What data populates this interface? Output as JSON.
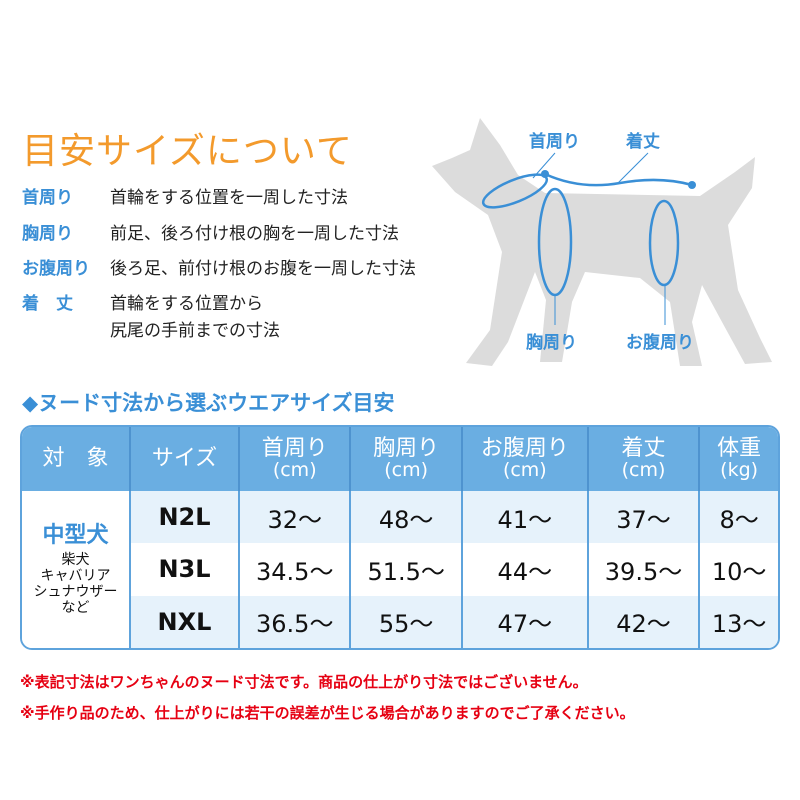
{
  "title": "目安サイズについて",
  "definitions": [
    {
      "term": "首周り",
      "desc": [
        "首輪をする位置を一周した寸法"
      ]
    },
    {
      "term": "胸周り",
      "desc": [
        "前足、後ろ付け根の胸を一周した寸法"
      ]
    },
    {
      "term": "お腹周り",
      "desc": [
        "後ろ足、前付け根のお腹を一周した寸法"
      ]
    },
    {
      "term": "着　丈",
      "desc": [
        "首輪をする位置から",
        "尻尾の手前までの寸法"
      ]
    }
  ],
  "diagram": {
    "labels": {
      "neck": "首周り",
      "length": "着丈",
      "chest": "胸周り",
      "belly": "お腹周り"
    }
  },
  "subtitle": "◆ヌード寸法から選ぶウエアサイズ目安",
  "table": {
    "headers": [
      {
        "label": "対　象"
      },
      {
        "label": "サイズ"
      },
      {
        "label": "首周り",
        "unit": "(cm)"
      },
      {
        "label": "胸周り",
        "unit": "(cm)"
      },
      {
        "label": "お腹周り",
        "unit": "(cm)"
      },
      {
        "label": "着丈",
        "unit": "(cm)"
      },
      {
        "label": "体重",
        "unit": "(kg)"
      }
    ],
    "target": {
      "category": "中型犬",
      "breeds": [
        "柴犬",
        "キャバリア",
        "シュナウザー",
        "など"
      ]
    },
    "rows": [
      [
        "N2L",
        "32〜",
        "48〜",
        "41〜",
        "37〜",
        "8〜"
      ],
      [
        "N3L",
        "34.5〜",
        "51.5〜",
        "44〜",
        "39.5〜",
        "10〜"
      ],
      [
        "NXL",
        "36.5〜",
        "55〜",
        "47〜",
        "42〜",
        "13〜"
      ]
    ]
  },
  "notes": [
    "※表記寸法はワンちゃんのヌード寸法です。商品の仕上がり寸法ではございません。",
    "※手作り品のため、仕上がりには若干の誤差が生じる場合がありますのでご了承ください。"
  ],
  "colors": {
    "title": "#f39a2c",
    "accent": "#3a8fd6",
    "header": "#6aaee2",
    "note": "#e60012",
    "dog": "#dcdcdc"
  }
}
